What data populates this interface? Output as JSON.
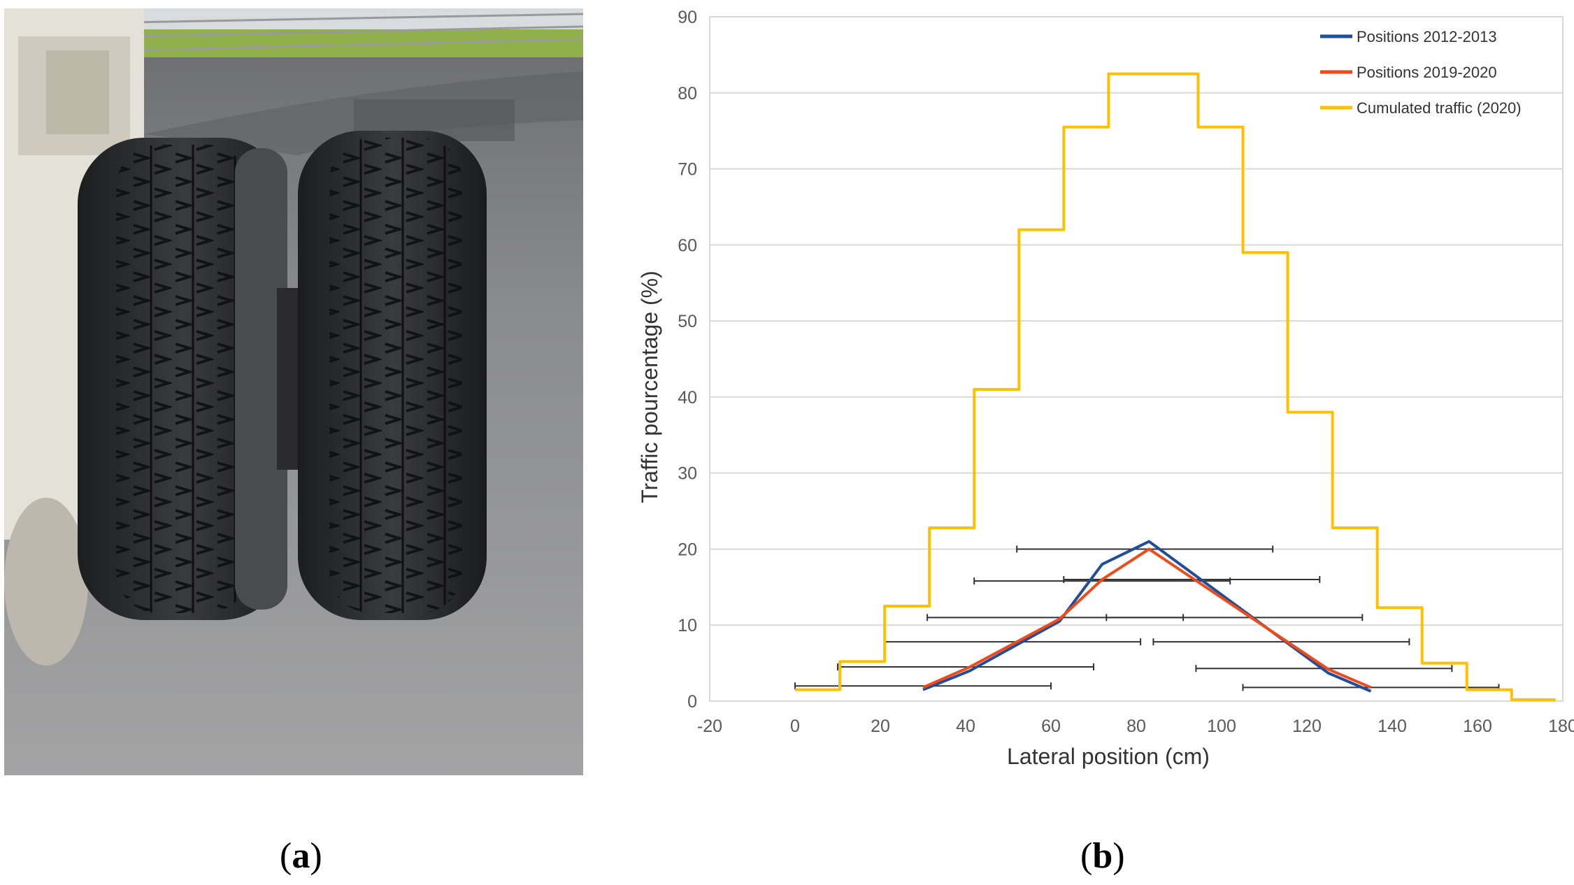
{
  "panel_a": {
    "caption": "a",
    "image": "tire-photo"
  },
  "panel_b": {
    "caption": "b"
  },
  "chart_data": {
    "type": "line",
    "title": "",
    "xlabel": "Lateral position (cm)",
    "ylabel": "Traffic pourcentage (%)",
    "xlim": [
      -20,
      180
    ],
    "ylim": [
      0,
      90
    ],
    "xticks": [
      -20,
      0,
      20,
      40,
      60,
      80,
      100,
      120,
      140,
      160,
      180
    ],
    "yticks": [
      0,
      10,
      20,
      30,
      40,
      50,
      60,
      70,
      80,
      90
    ],
    "grid": "horizontal",
    "legend_position": "top-right",
    "series": [
      {
        "name": "Positions 2012-2013",
        "color": "#1f4e9c",
        "x": [
          30,
          41,
          62,
          72,
          83,
          125,
          135
        ],
        "y": [
          1.5,
          4,
          10.5,
          18,
          21,
          3.7,
          1.3
        ]
      },
      {
        "name": "Positions 2019-2020",
        "color": "#f04a1a",
        "x": [
          30,
          41,
          62,
          72,
          83,
          125,
          135
        ],
        "y": [
          1.8,
          4.5,
          10.8,
          16,
          20,
          4.2,
          1.8
        ]
      },
      {
        "name": "Cumulated traffic (2020)",
        "color": "#ffc000",
        "style": "step",
        "x": [
          0,
          10.5,
          21,
          31.5,
          42,
          52.5,
          63,
          73.5,
          94.5,
          105,
          115.5,
          126,
          136.5,
          147,
          157.5,
          168,
          178
        ],
        "y": [
          1.5,
          5.2,
          12.5,
          22.8,
          41,
          62,
          75.5,
          82.5,
          75.5,
          59,
          38,
          22.8,
          12.3,
          5,
          1.5,
          0.2,
          0
        ]
      }
    ],
    "error_bars": [
      {
        "y": 2,
        "x_from": 0,
        "x_to": 60
      },
      {
        "y": 4.5,
        "x_from": 10,
        "x_to": 70
      },
      {
        "y": 7.8,
        "x_from": 21,
        "x_to": 81
      },
      {
        "y": 11,
        "x_from": 31,
        "x_to": 91
      },
      {
        "y": 15.8,
        "x_from": 42,
        "x_to": 102
      },
      {
        "y": 20,
        "x_from": 52,
        "x_to": 112
      },
      {
        "y": 16,
        "x_from": 63,
        "x_to": 123
      },
      {
        "y": 11,
        "x_from": 73,
        "x_to": 133
      },
      {
        "y": 7.8,
        "x_from": 84,
        "x_to": 144
      },
      {
        "y": 4.3,
        "x_from": 94,
        "x_to": 154
      },
      {
        "y": 1.8,
        "x_from": 105,
        "x_to": 165
      }
    ]
  }
}
